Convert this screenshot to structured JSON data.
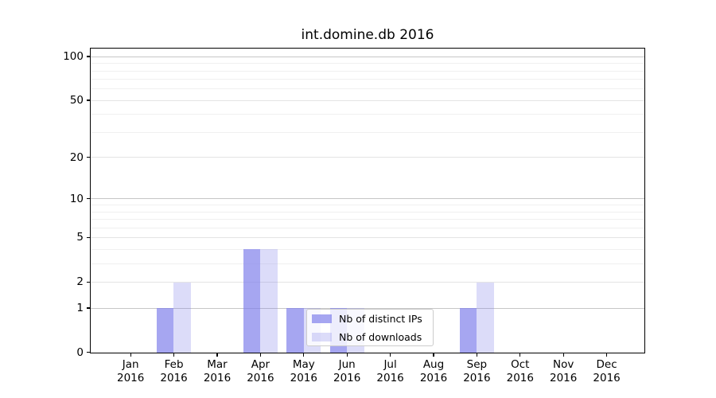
{
  "figure": {
    "title": "int.domine.db 2016"
  },
  "chart_data": {
    "type": "bar",
    "title": "int.domine.db 2016",
    "categories": [
      "Jan 2016",
      "Feb 2016",
      "Mar 2016",
      "Apr 2016",
      "May 2016",
      "Jun 2016",
      "Jul 2016",
      "Aug 2016",
      "Sep 2016",
      "Oct 2016",
      "Nov 2016",
      "Dec 2016"
    ],
    "x_tick_month": [
      "Jan",
      "Feb",
      "Mar",
      "Apr",
      "May",
      "Jun",
      "Jul",
      "Aug",
      "Sep",
      "Oct",
      "Nov",
      "Dec"
    ],
    "x_tick_year": "2016",
    "series": [
      {
        "name": "Nb of distinct IPs",
        "color": "rgba(128,128,235,0.70)",
        "values": [
          0,
          1,
          0,
          4,
          1,
          1,
          0,
          0,
          1,
          0,
          0,
          0
        ]
      },
      {
        "name": "Nb of downloads",
        "color": "rgba(128,128,235,0.28)",
        "values": [
          0,
          2,
          0,
          4,
          1,
          1,
          0,
          0,
          2,
          0,
          0,
          0
        ]
      }
    ],
    "xlabel": "",
    "ylabel": "",
    "yscale": "log1p",
    "ylim": [
      0,
      113
    ],
    "yticks": [
      0,
      1,
      2,
      5,
      10,
      20,
      50,
      100
    ],
    "minor_yticks": [
      3,
      4,
      6,
      7,
      8,
      9,
      30,
      40,
      60,
      70,
      80,
      90
    ],
    "grid": true,
    "legend_position": "inside-lower-center",
    "colors": {
      "grid_decade": "#c6c6c6",
      "grid_tick": "#e4e4e4",
      "grid_minor": "#f0f0f0",
      "spine": "#000000",
      "text": "#000000"
    }
  }
}
